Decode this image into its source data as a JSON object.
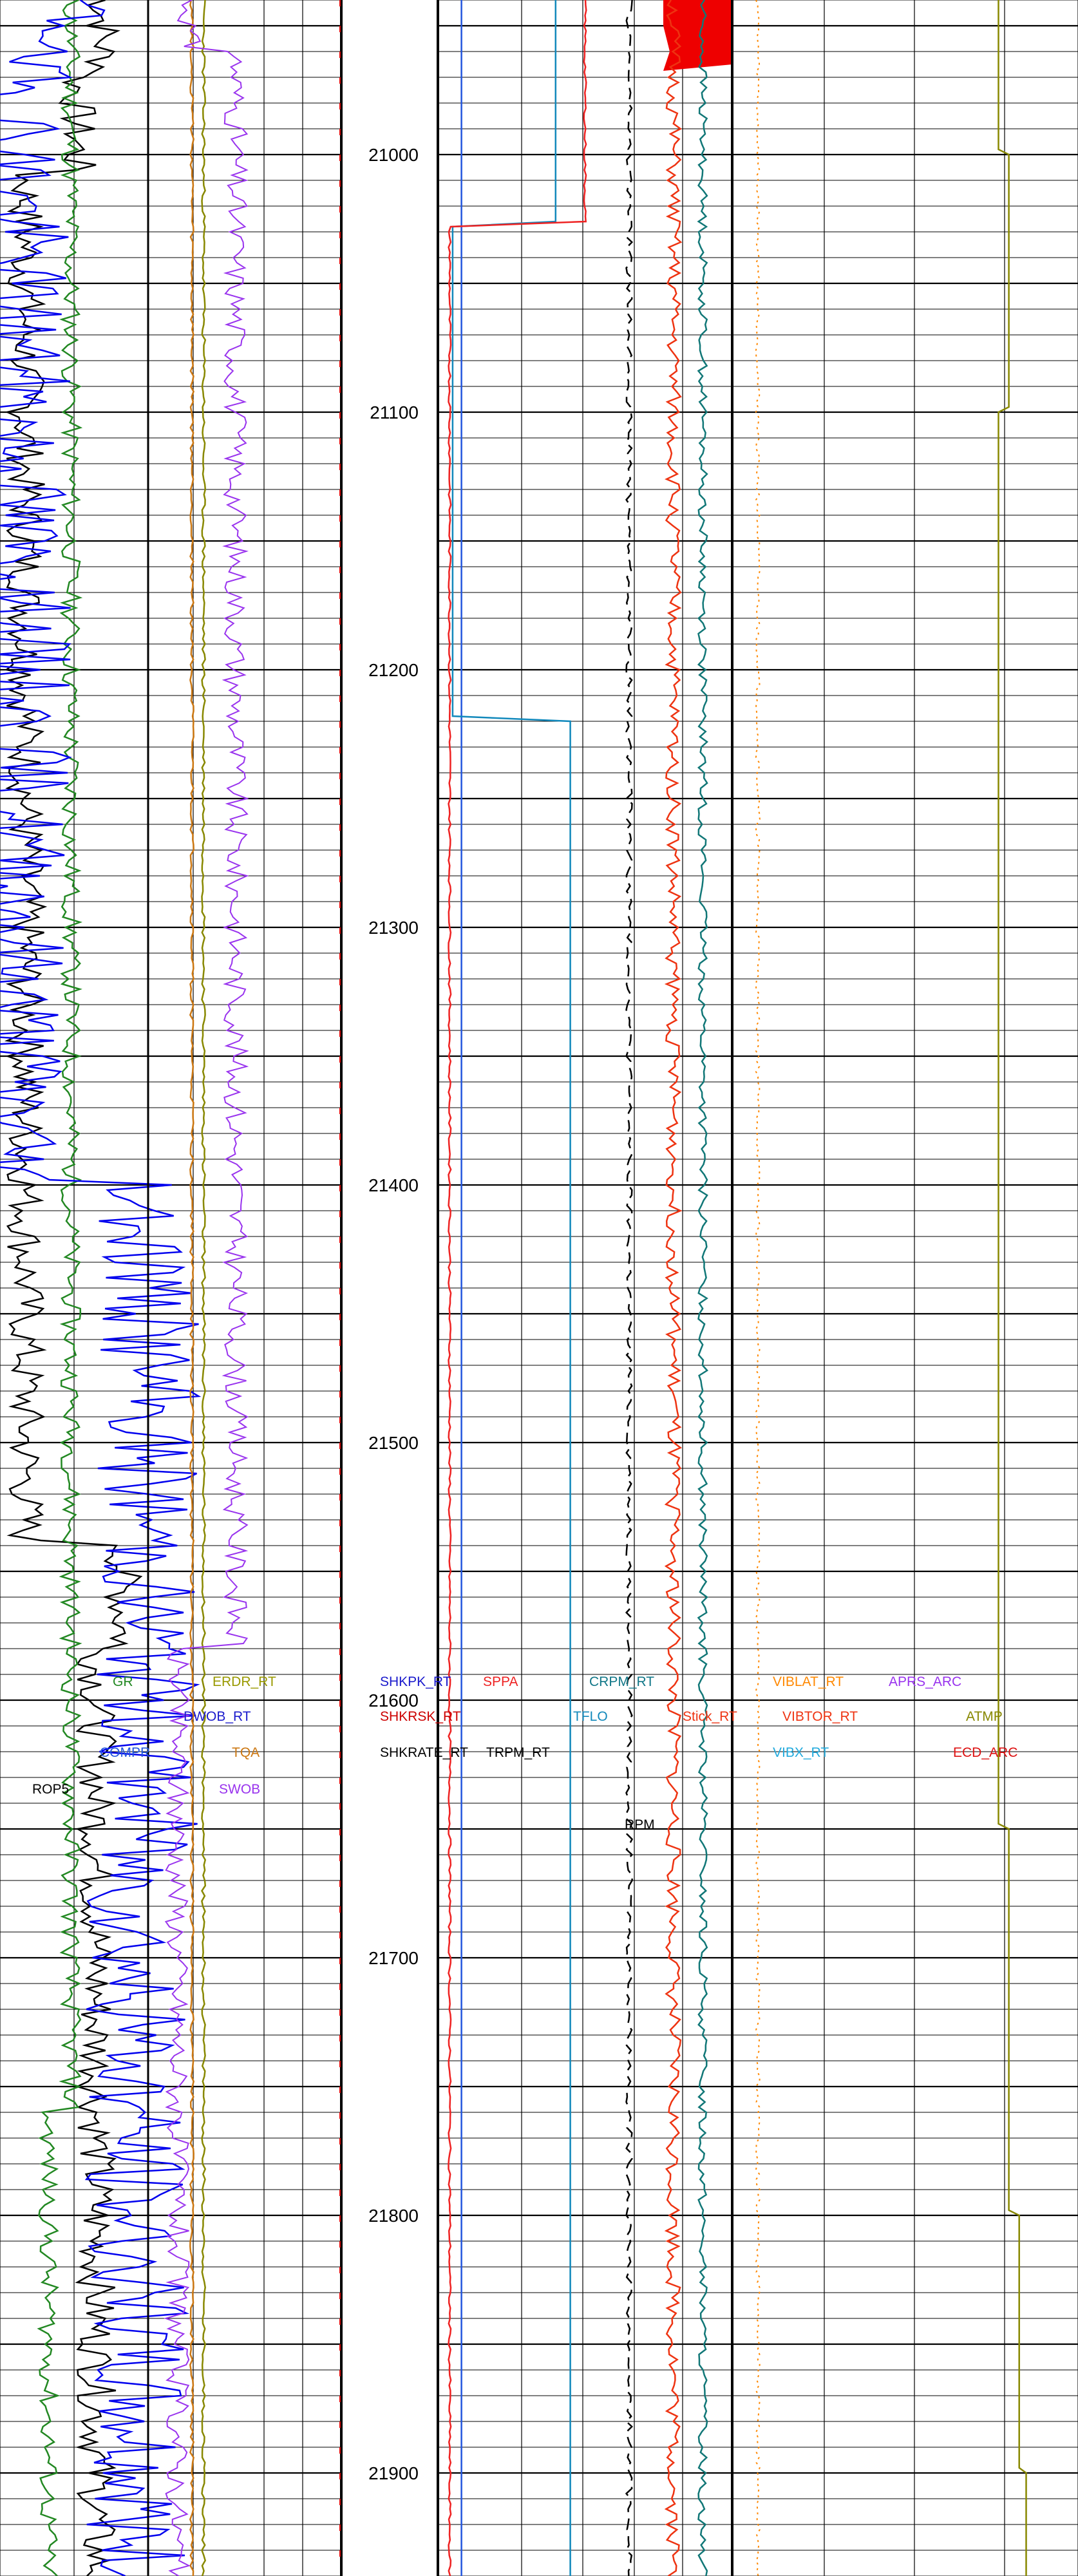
{
  "chart_data": {
    "type": "line",
    "title": "",
    "orientation": "vertical-depth",
    "depth_axis": {
      "ylim": [
        20940,
        21940
      ],
      "tick_labels": [
        "21000",
        "21100",
        "21200",
        "21300",
        "21400",
        "21500",
        "21600",
        "21700",
        "21800",
        "21900"
      ],
      "minor_step": 10,
      "major_step": 50
    },
    "grid": true,
    "tracks": [
      {
        "name": "track-1",
        "curves": [
          "ROP5",
          "COMPR",
          "DWOB_RT",
          "SWOB",
          "TQA",
          "ERDR_RT",
          "GR"
        ]
      },
      {
        "name": "depth-track",
        "curves": []
      },
      {
        "name": "track-2",
        "curves": [
          "SHKPK_RT",
          "SHKRSK_RT",
          "SHKRATE_RT",
          "TRPM_RT",
          "SPPA",
          "TFLO",
          "CRPM_RT",
          "Stick_RT",
          "RPM",
          "VIBX_RT"
        ]
      },
      {
        "name": "track-3",
        "curves": [
          "VIBLAT_RT",
          "VIBTOR_RT",
          "APRS_ARC",
          "ATMP",
          "ECD_ARC"
        ]
      }
    ],
    "curve_labels": [
      {
        "text": "ROP5",
        "color": "#000000"
      },
      {
        "text": "COMPR",
        "color": "#2255dd"
      },
      {
        "text": "DWOB_RT",
        "color": "#1a1acc"
      },
      {
        "text": "SWOB",
        "color": "#9933ee"
      },
      {
        "text": "TQA",
        "color": "#cc7711"
      },
      {
        "text": "ERDR_RT",
        "color": "#999900"
      },
      {
        "text": "GR",
        "color": "#228822"
      },
      {
        "text": "SHKPK_RT",
        "color": "#1a1acc"
      },
      {
        "text": "SHKRSK_RT",
        "color": "#cc0000"
      },
      {
        "text": "SHKRATE_RT",
        "color": "#000000"
      },
      {
        "text": "TRPM_RT",
        "color": "#000000"
      },
      {
        "text": "SPPA",
        "color": "#ee2222"
      },
      {
        "text": "TFLO",
        "color": "#1188bb"
      },
      {
        "text": "CRPM_RT",
        "color": "#117788"
      },
      {
        "text": "Stick_RT",
        "color": "#ee3311"
      },
      {
        "text": "RPM",
        "color": "#000000"
      },
      {
        "text": "VIBX_RT",
        "color": "#22aadd"
      },
      {
        "text": "VIBLAT_RT",
        "color": "#ff8800"
      },
      {
        "text": "VIBTOR_RT",
        "color": "#ee3311"
      },
      {
        "text": "APRS_ARC",
        "color": "#9933ee"
      },
      {
        "text": "ATMP",
        "color": "#888800"
      },
      {
        "text": "ECD_ARC",
        "color": "#dd1111"
      }
    ],
    "curves": [
      {
        "name": "ROP5",
        "color": "#000000",
        "width": 2.5,
        "style": "solid",
        "track_range": [
          0,
          230
        ],
        "base": 160,
        "amp": 30,
        "seed": 7,
        "events": [
          {
            "depth": 20970,
            "value": 120
          },
          {
            "depth": 21008,
            "value": 40
          },
          {
            "depth": 21035,
            "value": 200
          },
          {
            "depth": 21540,
            "value": 190
          },
          {
            "depth": 21580,
            "value": 150
          }
        ]
      },
      {
        "name": "GR",
        "color": "#228822",
        "width": 2.5,
        "style": "solid",
        "track_range": [
          0,
          230
        ],
        "base": 110,
        "amp": 15,
        "seed": 11,
        "events": [
          {
            "depth": 20985,
            "value": 85
          },
          {
            "depth": 21760,
            "value": 75
          }
        ]
      },
      {
        "name": "COMPR",
        "color": "#0000ee",
        "width": 2.5,
        "style": "solid",
        "track_range": [
          0,
          230
        ],
        "base": 110,
        "amp": 80,
        "seed": 19,
        "events": [
          {
            "depth": 20960,
            "value": 30
          },
          {
            "depth": 21400,
            "value": 230
          },
          {
            "depth": 21660,
            "value": 210
          }
        ]
      },
      {
        "name": "ERDR_RT",
        "color": "#888800",
        "width": 2.5,
        "style": "solid",
        "track_range": [
          0,
          75
        ],
        "base": 38,
        "amp": 1.2,
        "seed": 23,
        "events": []
      },
      {
        "name": "TQA",
        "color": "#cc7711",
        "width": 2.5,
        "style": "solid",
        "track_range": [
          0,
          75
        ],
        "base": 30,
        "amp": 1.2,
        "seed": 27,
        "events": []
      },
      {
        "name": "SWOB",
        "color": "#9933ee",
        "width": 2,
        "style": "solid",
        "track_range": [
          0,
          75
        ],
        "base": 28,
        "amp": 8,
        "seed": 31,
        "events": [
          {
            "depth": 20960,
            "value": 60
          },
          {
            "depth": 21580,
            "value": 20
          }
        ]
      },
      {
        "name": "SHKPK_RT",
        "color": "#2255dd",
        "width": 2.5,
        "style": "solid",
        "track_range": [
          0,
          100
        ],
        "base": 8,
        "amp": 0,
        "seed": 35,
        "events": []
      },
      {
        "name": "TFLO",
        "color": "#1188bb",
        "width": 2.5,
        "style": "solid",
        "track_range": [
          0,
          100
        ],
        "base": 40,
        "amp": 0,
        "seed": 39,
        "events": [
          {
            "depth": 21028,
            "value": 5
          },
          {
            "depth": 21220,
            "value": 45
          }
        ]
      },
      {
        "name": "SPPA",
        "color": "#ee2222",
        "width": 2.5,
        "style": "solid",
        "track_range": [
          0,
          100
        ],
        "base": 50,
        "amp": 0.4,
        "seed": 43,
        "events": [
          {
            "depth": 21028,
            "value": 4
          }
        ]
      },
      {
        "name": "TRPM_RT",
        "color": "#000000",
        "width": 2.5,
        "style": "dash",
        "track_range": [
          0,
          100
        ],
        "base": 65,
        "amp": 1,
        "seed": 47,
        "events": []
      },
      {
        "name": "Stick_RT",
        "color": "#ee3311",
        "width": 2.5,
        "style": "solid",
        "track_range": [
          0,
          100
        ],
        "base": 80,
        "amp": 2.5,
        "seed": 51,
        "events": []
      },
      {
        "name": "CRPM_RT",
        "color": "#117777",
        "width": 2.5,
        "style": "solid",
        "track_range": [
          0,
          100
        ],
        "base": 90,
        "amp": 1.5,
        "seed": 55,
        "events": []
      },
      {
        "name": "VIBLAT_RT",
        "color": "#ff8800",
        "width": 2,
        "style": "dot",
        "track_range": [
          0,
          100
        ],
        "base": 98,
        "amp": 0.6,
        "seed": 59,
        "events": []
      },
      {
        "name": "ATMP",
        "color": "#888800",
        "width": 2.5,
        "style": "solid",
        "track_range": [
          0,
          100
        ],
        "base": 77,
        "amp": 0,
        "seed": 63,
        "events": [
          {
            "depth": 21000,
            "value": 80
          },
          {
            "depth": 21100,
            "value": 77
          },
          {
            "depth": 21650,
            "value": 80
          },
          {
            "depth": 21800,
            "value": 83
          },
          {
            "depth": 21900,
            "value": 85
          }
        ]
      },
      {
        "name": "APRS_ARC",
        "color": "#9933ee",
        "width": 2.5,
        "style": "dash",
        "track_range": [
          0,
          100
        ],
        "base": 70,
        "amp": 0,
        "seed": 67,
        "events": []
      },
      {
        "name": "ECD_ARC",
        "color": "#dd1111",
        "width": 2.5,
        "style": "dash",
        "track_range": [
          0,
          100
        ],
        "base": 90,
        "amp": 0,
        "seed": 71,
        "events": []
      }
    ]
  }
}
